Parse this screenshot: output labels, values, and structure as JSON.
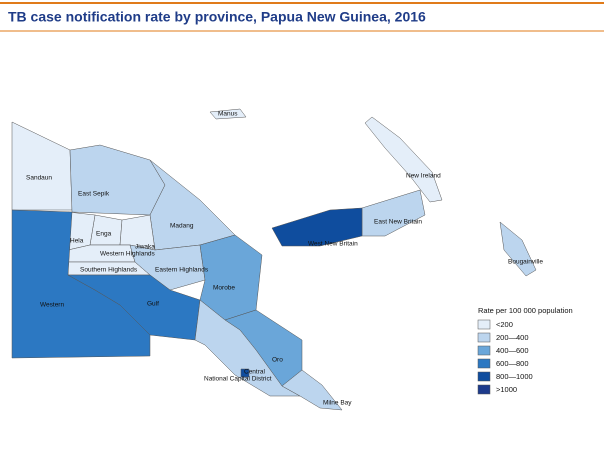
{
  "title": "TB case notification rate by province, Papua New Guinea, 2016",
  "legend": {
    "title": "Rate per 100 000 population",
    "items": [
      {
        "label": "<200",
        "color": "#e4eef9"
      },
      {
        "label": "200—400",
        "color": "#bcd5ee"
      },
      {
        "label": "400—600",
        "color": "#6aa6d9"
      },
      {
        "label": "600—800",
        "color": "#2c78c2"
      },
      {
        "label": "800—1000",
        "color": "#0f4d9e"
      },
      {
        "label": ">1000",
        "color": "#1d3b8c"
      }
    ]
  },
  "provinces": [
    {
      "name": "Manus",
      "color": "#e4eef9"
    },
    {
      "name": "Sandaun",
      "color": "#e4eef9"
    },
    {
      "name": "East Sepik",
      "color": "#bcd5ee"
    },
    {
      "name": "New Ireland",
      "color": "#e4eef9"
    },
    {
      "name": "East New Britain",
      "color": "#bcd5ee"
    },
    {
      "name": "Madang",
      "color": "#bcd5ee"
    },
    {
      "name": "Enga",
      "color": "#e4eef9"
    },
    {
      "name": "Hela",
      "color": "#e4eef9"
    },
    {
      "name": "Jiwaka",
      "color": "#e4eef9"
    },
    {
      "name": "Western Highlands",
      "color": "#e4eef9"
    },
    {
      "name": "Southern Highlands",
      "color": "#e4eef9"
    },
    {
      "name": "Eastern Highlands",
      "color": "#bcd5ee"
    },
    {
      "name": "West New Britain",
      "color": "#0f4d9e"
    },
    {
      "name": "Bougainville",
      "color": "#bcd5ee"
    },
    {
      "name": "Western",
      "color": "#2c78c2"
    },
    {
      "name": "Gulf",
      "color": "#2c78c2"
    },
    {
      "name": "Morobe",
      "color": "#6aa6d9"
    },
    {
      "name": "Oro",
      "color": "#6aa6d9"
    },
    {
      "name": "Central",
      "color": "#bcd5ee"
    },
    {
      "name": "National Capital District",
      "color": "#0f4d9e"
    },
    {
      "name": "Milne Bay",
      "color": "#bcd5ee"
    }
  ]
}
